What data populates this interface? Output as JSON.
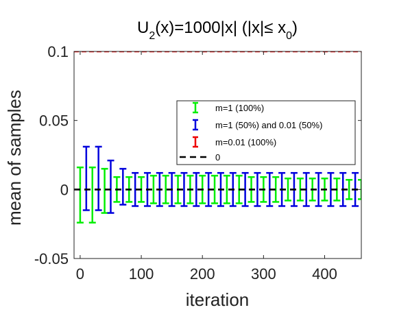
{
  "chart_data": {
    "type": "errorbar",
    "title": {
      "main": "U",
      "main_sub": "2",
      "rest": "(x)=1000|x| (|x|≤ x",
      "rest_sub": "0",
      "close": ")"
    },
    "xlabel": "iteration",
    "ylabel": "mean of samples",
    "xlim": [
      -10,
      460
    ],
    "ylim": [
      -0.05,
      0.1
    ],
    "xticks": [
      0,
      100,
      200,
      300,
      400
    ],
    "xtick_labels": [
      "0",
      "100",
      "200",
      "300",
      "400"
    ],
    "yticks": [
      -0.05,
      0,
      0.05,
      0.1
    ],
    "ytick_labels": [
      "-0.05",
      "0",
      "0.05",
      "0.1"
    ],
    "grid": false,
    "legend_position": "center-right",
    "series": [
      {
        "name": "m=1 (100%)",
        "color": "#00ee00",
        "style": "errorbar",
        "x": [
          0,
          20,
          40,
          60,
          80,
          100,
          120,
          140,
          160,
          180,
          200,
          220,
          240,
          260,
          280,
          300,
          320,
          340,
          360,
          380,
          400,
          420,
          440,
          460
        ],
        "y": [
          -0.004,
          -0.004,
          -0.001,
          0.0,
          0.0,
          0.0,
          0.0,
          0.0,
          0.0,
          0.0,
          0.0,
          0.0,
          0.0,
          0.0,
          0.0,
          0.0,
          0.0,
          0.0,
          0.0,
          0.0,
          0.0,
          0.0,
          0.0,
          0.0
        ],
        "err": [
          0.02,
          0.02,
          0.016,
          0.009,
          0.009,
          0.009,
          0.01,
          0.01,
          0.01,
          0.01,
          0.01,
          0.01,
          0.01,
          0.01,
          0.009,
          0.009,
          0.009,
          0.008,
          0.008,
          0.008,
          0.008,
          0.008,
          0.007,
          0.007
        ]
      },
      {
        "name": "m=1 (50%) and 0.01 (50%)",
        "color": "#0000dd",
        "style": "errorbar",
        "x": [
          10,
          30,
          50,
          70,
          90,
          110,
          130,
          150,
          170,
          190,
          210,
          230,
          250,
          270,
          290,
          310,
          330,
          350,
          370,
          390,
          410,
          430,
          450
        ],
        "y": [
          0.008,
          0.008,
          0.002,
          0.002,
          0.0,
          0.0,
          0.0,
          0.0,
          0.0,
          0.0,
          0.0,
          0.0,
          0.0,
          0.0,
          0.0,
          0.0,
          0.0,
          0.0,
          0.0,
          0.0,
          0.0,
          0.0,
          0.0
        ],
        "err": [
          0.023,
          0.023,
          0.019,
          0.013,
          0.012,
          0.012,
          0.012,
          0.012,
          0.012,
          0.012,
          0.012,
          0.012,
          0.012,
          0.012,
          0.012,
          0.012,
          0.012,
          0.012,
          0.012,
          0.012,
          0.012,
          0.012,
          0.012
        ]
      },
      {
        "name": "m=0.01 (100%)",
        "color": "#ee0000",
        "style": "dashed",
        "x": [
          -10,
          460
        ],
        "y": [
          0.1,
          0.1
        ]
      },
      {
        "name": "0",
        "color": "#000000",
        "style": "dashed",
        "x": [
          -10,
          460
        ],
        "y": [
          0,
          0
        ]
      }
    ]
  }
}
